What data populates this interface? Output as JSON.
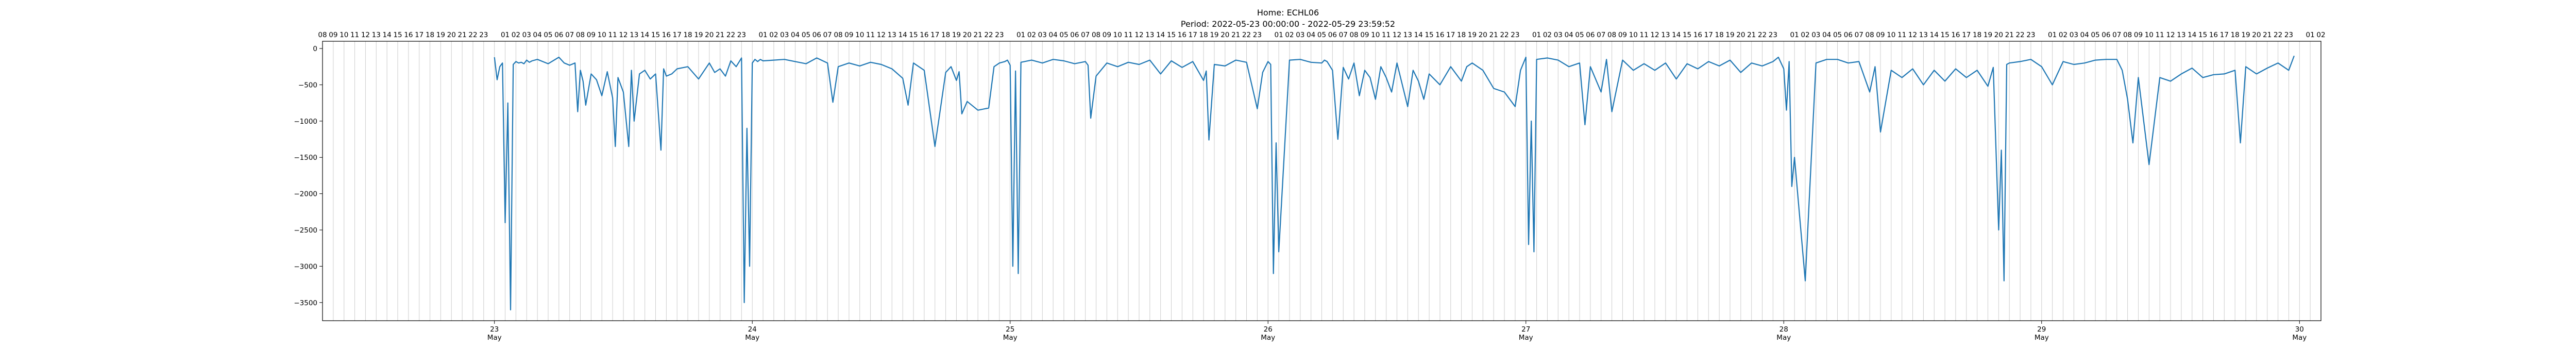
{
  "title": {
    "line1": "Home: ECHL06",
    "line2": "Period: 2022-05-23 00:00:00 - 2022-05-29 23:59:52"
  },
  "chart_data": {
    "type": "line",
    "title": "Home: ECHL06 / Period: 2022-05-23 00:00:00 - 2022-05-29 23:59:52",
    "x_range_hours": [
      -16,
      170
    ],
    "ylim": [
      -3750,
      100
    ],
    "yticks": [
      0,
      -500,
      -1000,
      -1500,
      -2000,
      -2500,
      -3000,
      -3500
    ],
    "x_major_ticks": [
      {
        "hour": 0,
        "day": "23",
        "month": "May"
      },
      {
        "hour": 24,
        "day": "24",
        "month": "May"
      },
      {
        "hour": 48,
        "day": "25",
        "month": "May"
      },
      {
        "hour": 72,
        "day": "26",
        "month": "May"
      },
      {
        "hour": 96,
        "day": "27",
        "month": "May"
      },
      {
        "hour": 120,
        "day": "28",
        "month": "May"
      },
      {
        "hour": 144,
        "day": "29",
        "month": "May"
      },
      {
        "hour": 168,
        "day": "30",
        "month": "May"
      }
    ],
    "hour_labels": [
      "16",
      "17",
      "18",
      "19",
      "20",
      "21",
      "22",
      "23",
      "01",
      "02",
      "03",
      "04",
      "05",
      "06",
      "07",
      "08",
      "09",
      "10",
      "11",
      "12",
      "13",
      "14",
      "15",
      "16",
      "17",
      "18",
      "19",
      "20",
      "21",
      "22",
      "23"
    ],
    "grid": "vertical hourly lines",
    "line_color": "#1f77b4",
    "series": [
      {
        "x": [
          0,
          0.25,
          0.5,
          0.75,
          1,
          1.25,
          1.5,
          1.75,
          2,
          2.25,
          2.5,
          2.75,
          3,
          3.25,
          3.5,
          4,
          5,
          6,
          6.5,
          7,
          7.5,
          7.75,
          8,
          8.25,
          8.5,
          9,
          9.5,
          10,
          10.5,
          11,
          11.25,
          11.5,
          12,
          12.5,
          12.75,
          13,
          13.5,
          14,
          14.5,
          15,
          15.5,
          15.75,
          16,
          16.5,
          17,
          18,
          19,
          20,
          20.5,
          21,
          21.5,
          22,
          22.5,
          23,
          23.25,
          23.5,
          23.75,
          24,
          24.25,
          24.5,
          24.75,
          25,
          26,
          27,
          28,
          29,
          30,
          31,
          31.5,
          32,
          33,
          34,
          35,
          36,
          37,
          38,
          38.5,
          39,
          40,
          41,
          42,
          42.5,
          43,
          43.25,
          43.5,
          44,
          45,
          46,
          46.5,
          47,
          47.5,
          47.75,
          48,
          48.25,
          48.5,
          48.75,
          49,
          50,
          51,
          52,
          53,
          54,
          55,
          55.25,
          55.5,
          56,
          57,
          58,
          59,
          60,
          61,
          62,
          63,
          64,
          65,
          66,
          66.25,
          66.5,
          67,
          68,
          69,
          70,
          71,
          71.5,
          72,
          72.25,
          72.5,
          72.75,
          73,
          74,
          75,
          76,
          77,
          77.25,
          77.5,
          78,
          78.5,
          79,
          79.5,
          80,
          80.5,
          81,
          81.5,
          82,
          82.5,
          83,
          83.5,
          84,
          84.5,
          85,
          85.5,
          86,
          86.5,
          87,
          88,
          89,
          90,
          90.5,
          91,
          92,
          93,
          94,
          95,
          95.5,
          96,
          96.25,
          96.5,
          96.75,
          97,
          98,
          99,
          100,
          101,
          101.5,
          102,
          103,
          103.5,
          104,
          105,
          106,
          107,
          108,
          109,
          110,
          111,
          112,
          113,
          114,
          115,
          116,
          117,
          118,
          119,
          119.5,
          120,
          120.25,
          120.5,
          120.75,
          121,
          122,
          123,
          124,
          125,
          126,
          127,
          128,
          128.5,
          129,
          130,
          131,
          132,
          133,
          134,
          135,
          136,
          137,
          138,
          139,
          139.5,
          140,
          140.25,
          140.5,
          140.75,
          141,
          142,
          143,
          144,
          145,
          146,
          147,
          148,
          149,
          150,
          151,
          151.5,
          152,
          152.5,
          153,
          154,
          155,
          156,
          157,
          158,
          159,
          160,
          161,
          162,
          162.5,
          163,
          164,
          165,
          166,
          167,
          167.5
        ],
        "y": [
          -120,
          -430,
          -250,
          -200,
          -2400,
          -750,
          -3600,
          -220,
          -180,
          -200,
          -190,
          -210,
          -160,
          -190,
          -170,
          -150,
          -210,
          -120,
          -200,
          -230,
          -200,
          -870,
          -300,
          -450,
          -780,
          -350,
          -430,
          -650,
          -320,
          -680,
          -1350,
          -400,
          -600,
          -1350,
          -300,
          -1000,
          -350,
          -300,
          -420,
          -350,
          -1400,
          -280,
          -380,
          -350,
          -280,
          -250,
          -420,
          -200,
          -330,
          -280,
          -380,
          -170,
          -250,
          -130,
          -3500,
          -1100,
          -3000,
          -200,
          -150,
          -180,
          -150,
          -170,
          -160,
          -150,
          -180,
          -210,
          -130,
          -200,
          -740,
          -250,
          -200,
          -240,
          -190,
          -220,
          -280,
          -410,
          -780,
          -200,
          -300,
          -1350,
          -330,
          -250,
          -440,
          -320,
          -900,
          -730,
          -850,
          -820,
          -250,
          -200,
          -180,
          -160,
          -230,
          -3000,
          -310,
          -3100,
          -190,
          -160,
          -200,
          -150,
          -170,
          -210,
          -180,
          -230,
          -960,
          -380,
          -200,
          -250,
          -190,
          -220,
          -160,
          -350,
          -170,
          -260,
          -180,
          -440,
          -310,
          -1260,
          -220,
          -240,
          -160,
          -190,
          -830,
          -330,
          -180,
          -220,
          -3100,
          -1300,
          -2800,
          -160,
          -150,
          -190,
          -200,
          -160,
          -180,
          -300,
          -1250,
          -260,
          -420,
          -200,
          -650,
          -300,
          -400,
          -700,
          -250,
          -400,
          -600,
          -200,
          -500,
          -800,
          -300,
          -450,
          -700,
          -350,
          -500,
          -250,
          -450,
          -250,
          -200,
          -300,
          -550,
          -600,
          -800,
          -300,
          -120,
          -2700,
          -1000,
          -2800,
          -150,
          -130,
          -160,
          -250,
          -200,
          -1050,
          -250,
          -600,
          -150,
          -870,
          -160,
          -300,
          -210,
          -300,
          -200,
          -420,
          -210,
          -280,
          -180,
          -240,
          -160,
          -330,
          -200,
          -240,
          -180,
          -120,
          -280,
          -850,
          -180,
          -1900,
          -1500,
          -3200,
          -200,
          -150,
          -150,
          -200,
          -180,
          -600,
          -250,
          -1150,
          -300,
          -400,
          -280,
          -500,
          -300,
          -450,
          -280,
          -400,
          -300,
          -520,
          -260,
          -2500,
          -1400,
          -3200,
          -220,
          -200,
          -180,
          -150,
          -250,
          -500,
          -180,
          -220,
          -200,
          -160,
          -150,
          -150,
          -300,
          -700,
          -1300,
          -400,
          -1600,
          -400,
          -450,
          -350,
          -270,
          -400,
          -360,
          -350,
          -300,
          -1300,
          -250,
          -350,
          -270,
          -200,
          -300,
          -100
        ]
      }
    ]
  }
}
